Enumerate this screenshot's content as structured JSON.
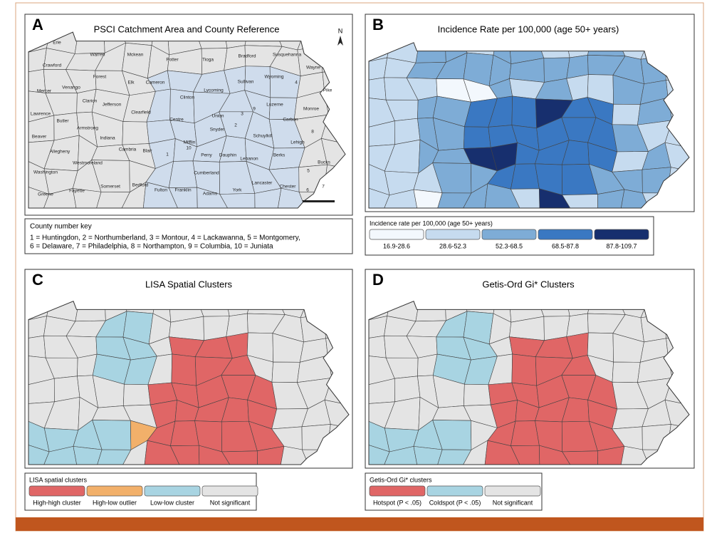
{
  "panels": [
    {
      "letter": "A",
      "title": "PSCI  Catchment Area and County Reference",
      "north": "N",
      "catchment_color": "#cfdcec",
      "other_color": "#e4e4e4",
      "counties": [
        "Erie",
        "Warren",
        "Mckean",
        "Potter",
        "Tioga",
        "Bradford",
        "Susquehanna",
        "Wayne",
        "Crawford",
        "Forest",
        "Elk",
        "Cameron",
        "Lycoming",
        "Sullivan",
        "Wyoming",
        "4",
        "Pike",
        "Mercer",
        "Venango",
        "Clarion",
        "Clinton",
        "Jefferson",
        "Clearfield",
        "Centre",
        "Union",
        "3",
        "9",
        "Luzerne",
        "Monroe",
        "Lawrence",
        "Butler",
        "2",
        "Carbon",
        "Armstrong",
        "Snyder",
        "Schuylkill",
        "Beaver",
        "Indiana",
        "Mifflin",
        "10",
        "Lehigh",
        "8",
        "Allegheny",
        "Cambria",
        "Blair",
        "1",
        "Perry",
        "Dauphin",
        "Lebanon",
        "Berks",
        "Westmoreland",
        "Washington",
        "Cumberland",
        "Lancaster",
        "Bucks",
        "5",
        "Fayette",
        "Somerset",
        "Bedford",
        "Fulton",
        "Franklin",
        "Adams",
        "York",
        "Chester",
        "6",
        "7",
        "Greene"
      ]
    },
    {
      "letter": "B",
      "title": "Incidence Rate per 100,000 (age 50+ years)",
      "legend": {
        "title": "Incidence rate per 100,000 (age 50+ years)",
        "items": [
          {
            "label": "16.9-28.6",
            "color": "#f3f8fd"
          },
          {
            "label": "28.6-52.3",
            "color": "#c6dbef"
          },
          {
            "label": "52.3-68.5",
            "color": "#7eacd6"
          },
          {
            "label": "68.5-87.8",
            "color": "#3a78c2"
          },
          {
            "label": "87.8-109.7",
            "color": "#172f6e"
          }
        ]
      }
    },
    {
      "letter": "C",
      "title": "LISA Spatial Clusters",
      "legend": {
        "title": "LISA spatial clusters",
        "items": [
          {
            "label": "High-high cluster",
            "color": "#e06666"
          },
          {
            "label": "High-low outlier",
            "color": "#f2b06a"
          },
          {
            "label": "Low-low cluster",
            "color": "#a8d4e2"
          },
          {
            "label": "Not significant",
            "color": "#e4e4e4"
          }
        ]
      }
    },
    {
      "letter": "D",
      "title": "Getis-Ord Gi* Clusters",
      "legend": {
        "title": "Getis-Ord Gi* clusters",
        "items": [
          {
            "label": "Hotspot (P < .05)",
            "color": "#e06666"
          },
          {
            "label": "Coldspot (P < .05)",
            "color": "#a8d4e2"
          },
          {
            "label": "Not significant",
            "color": "#e4e4e4"
          }
        ]
      }
    }
  ],
  "county_key": {
    "title": "County number key",
    "lines": [
      "1 = Huntingdon, 2 = Northumberland, 3 = Montour, 4 = Lackawanna, 5 = Montgomery,",
      "6 = Delaware, 7 = Philadelphia, 8 = Northampton, 9 = Columbia, 10 = Juniata"
    ]
  }
}
